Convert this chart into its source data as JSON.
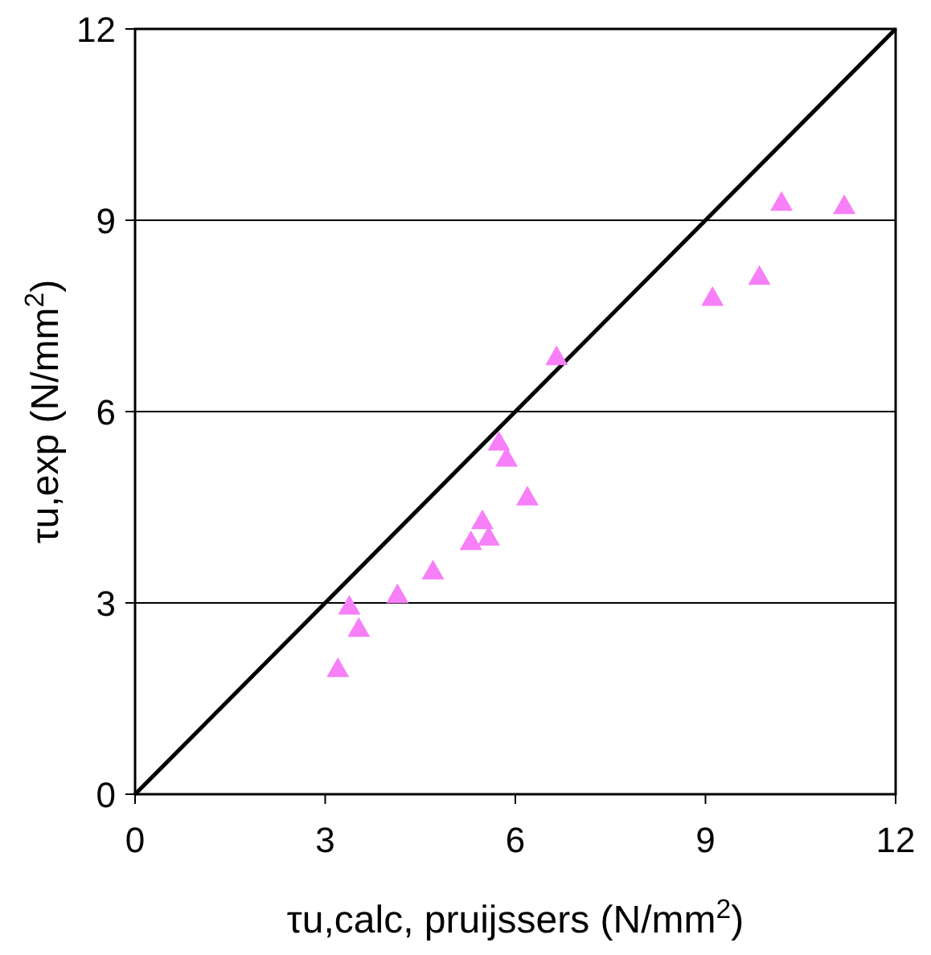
{
  "chart_data": {
    "type": "scatter",
    "xlabel": "τu,calc, pruijssers (N/mm$^{2}$)",
    "ylabel": "τu,exp (N/mm$^{2}$)",
    "xlim": [
      0,
      12
    ],
    "ylim": [
      0,
      12
    ],
    "xticks": [
      0,
      3,
      6,
      9,
      12
    ],
    "yticks": [
      0,
      3,
      6,
      9,
      12
    ],
    "grid": "y",
    "series": [
      {
        "type": "line",
        "color": "#000000",
        "x": [
          0,
          12
        ],
        "values": [
          0,
          12
        ],
        "marker": "none",
        "line_style": "solid"
      },
      {
        "color": "#f77ff7",
        "marker": "triangle",
        "x": [
          3.2,
          3.38,
          3.53,
          4.14,
          4.7,
          5.3,
          5.48,
          5.58,
          5.74,
          5.86,
          6.19,
          6.65,
          9.11,
          9.85,
          10.2,
          11.19
        ],
        "values": [
          1.97,
          2.95,
          2.6,
          3.13,
          3.5,
          3.96,
          4.29,
          4.03,
          5.52,
          5.27,
          4.66,
          6.86,
          7.79,
          8.12,
          9.28,
          9.23
        ]
      }
    ]
  }
}
